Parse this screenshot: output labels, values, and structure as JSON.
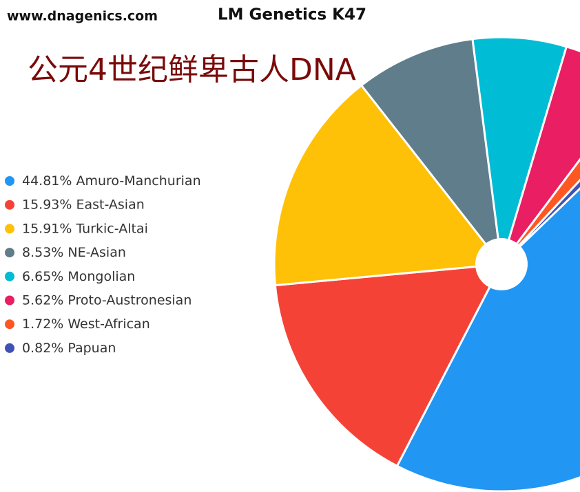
{
  "chart_data": {
    "type": "pie",
    "site": "www.dnagenics.com",
    "title": "LM Genetics K47",
    "subtitle": "公元4世纪鲜卑古人DNA",
    "categories": [
      "Amuro-Manchurian",
      "East-Asian",
      "Turkic-Altai",
      "NE-Asian",
      "Mongolian",
      "Proto-Austronesian",
      "West-African",
      "Papuan"
    ],
    "values": [
      44.81,
      15.93,
      15.91,
      8.53,
      6.65,
      5.62,
      1.72,
      0.82
    ],
    "value_labels": [
      "44.81%",
      "15.93%",
      "15.91%",
      "8.53%",
      "6.65%",
      "5.62%",
      "1.72%",
      "0.82%"
    ],
    "colors": [
      "#2196f3",
      "#f44336",
      "#ffc107",
      "#607d8b",
      "#00bcd4",
      "#e91e63",
      "#ff5722",
      "#3f51b5"
    ],
    "legend": "left"
  }
}
